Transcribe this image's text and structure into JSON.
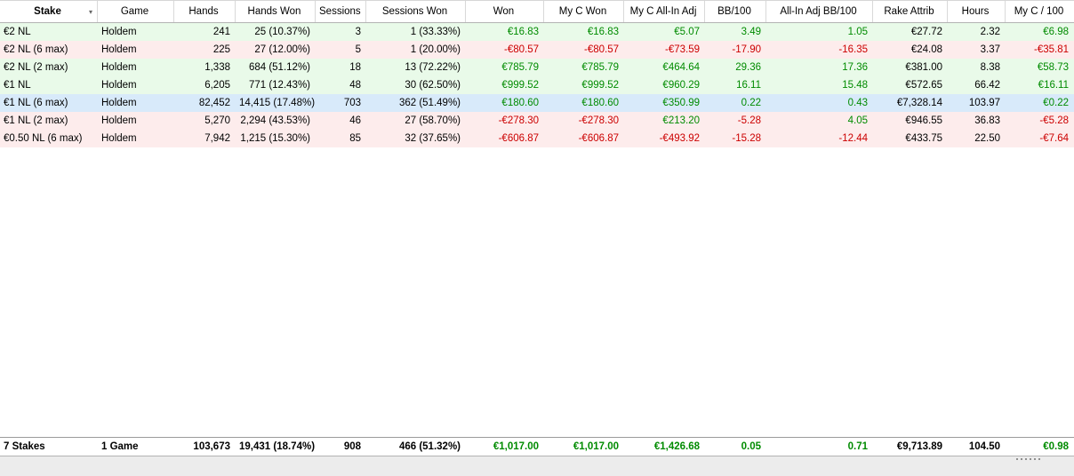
{
  "colors": {
    "positive_text": "#008b00",
    "negative_text": "#cc0000",
    "row_win_bg": "#e9fae9",
    "row_loss_bg": "#fdecec",
    "row_selected_bg": "#d8eafa"
  },
  "table": {
    "columns": [
      {
        "id": "stake",
        "label": "Stake",
        "sort_arrow": true
      },
      {
        "id": "game",
        "label": "Game"
      },
      {
        "id": "hands",
        "label": "Hands"
      },
      {
        "id": "hands-won",
        "label": "Hands Won"
      },
      {
        "id": "sessions",
        "label": "Sessions"
      },
      {
        "id": "sessions-won",
        "label": "Sessions Won"
      },
      {
        "id": "won",
        "label": "Won"
      },
      {
        "id": "my-c-won",
        "label": "My C Won"
      },
      {
        "id": "my-c-all-in-adj",
        "label": "My C All-In Adj"
      },
      {
        "id": "bb-100",
        "label": "BB/100"
      },
      {
        "id": "all-in-adj-bb-100",
        "label": "All-In Adj BB/100"
      },
      {
        "id": "rake-attrib",
        "label": "Rake Attrib"
      },
      {
        "id": "hours",
        "label": "Hours"
      },
      {
        "id": "my-c-100",
        "label": "My C / 100"
      }
    ],
    "rows": [
      {
        "bg": "green",
        "selected": false,
        "cells": [
          {
            "t": "€2 NL"
          },
          {
            "t": "Holdem"
          },
          {
            "t": "241"
          },
          {
            "t": "25 (10.37%)"
          },
          {
            "t": "3"
          },
          {
            "t": "1 (33.33%)"
          },
          {
            "t": "€16.83",
            "c": "pos"
          },
          {
            "t": "€16.83",
            "c": "pos"
          },
          {
            "t": "€5.07",
            "c": "pos"
          },
          {
            "t": "3.49",
            "c": "pos"
          },
          {
            "t": "1.05",
            "c": "pos"
          },
          {
            "t": "€27.72"
          },
          {
            "t": "2.32"
          },
          {
            "t": "€6.98",
            "c": "pos"
          }
        ]
      },
      {
        "bg": "pink",
        "selected": false,
        "cells": [
          {
            "t": "€2 NL (6 max)"
          },
          {
            "t": "Holdem"
          },
          {
            "t": "225"
          },
          {
            "t": "27 (12.00%)"
          },
          {
            "t": "5"
          },
          {
            "t": "1 (20.00%)"
          },
          {
            "t": "-€80.57",
            "c": "neg"
          },
          {
            "t": "-€80.57",
            "c": "neg"
          },
          {
            "t": "-€73.59",
            "c": "neg"
          },
          {
            "t": "-17.90",
            "c": "neg"
          },
          {
            "t": "-16.35",
            "c": "neg"
          },
          {
            "t": "€24.08"
          },
          {
            "t": "3.37"
          },
          {
            "t": "-€35.81",
            "c": "neg"
          }
        ]
      },
      {
        "bg": "green",
        "selected": false,
        "cells": [
          {
            "t": "€2 NL (2 max)"
          },
          {
            "t": "Holdem"
          },
          {
            "t": "1,338"
          },
          {
            "t": "684 (51.12%)"
          },
          {
            "t": "18"
          },
          {
            "t": "13 (72.22%)"
          },
          {
            "t": "€785.79",
            "c": "pos"
          },
          {
            "t": "€785.79",
            "c": "pos"
          },
          {
            "t": "€464.64",
            "c": "pos"
          },
          {
            "t": "29.36",
            "c": "pos"
          },
          {
            "t": "17.36",
            "c": "pos"
          },
          {
            "t": "€381.00"
          },
          {
            "t": "8.38"
          },
          {
            "t": "€58.73",
            "c": "pos"
          }
        ]
      },
      {
        "bg": "green",
        "selected": false,
        "cells": [
          {
            "t": "€1 NL"
          },
          {
            "t": "Holdem"
          },
          {
            "t": "6,205"
          },
          {
            "t": "771 (12.43%)"
          },
          {
            "t": "48"
          },
          {
            "t": "30 (62.50%)"
          },
          {
            "t": "€999.52",
            "c": "pos"
          },
          {
            "t": "€999.52",
            "c": "pos"
          },
          {
            "t": "€960.29",
            "c": "pos"
          },
          {
            "t": "16.11",
            "c": "pos"
          },
          {
            "t": "15.48",
            "c": "pos"
          },
          {
            "t": "€572.65"
          },
          {
            "t": "66.42"
          },
          {
            "t": "€16.11",
            "c": "pos"
          }
        ]
      },
      {
        "bg": "blue",
        "selected": true,
        "cells": [
          {
            "t": "€1 NL (6 max)"
          },
          {
            "t": "Holdem"
          },
          {
            "t": "82,452"
          },
          {
            "t": "14,415 (17.48%)"
          },
          {
            "t": "703"
          },
          {
            "t": "362 (51.49%)"
          },
          {
            "t": "€180.60",
            "c": "pos"
          },
          {
            "t": "€180.60",
            "c": "pos"
          },
          {
            "t": "€350.99",
            "c": "pos"
          },
          {
            "t": "0.22",
            "c": "pos"
          },
          {
            "t": "0.43",
            "c": "pos"
          },
          {
            "t": "€7,328.14"
          },
          {
            "t": "103.97"
          },
          {
            "t": "€0.22",
            "c": "pos"
          }
        ]
      },
      {
        "bg": "pink",
        "selected": false,
        "cells": [
          {
            "t": "€1 NL (2 max)"
          },
          {
            "t": "Holdem"
          },
          {
            "t": "5,270"
          },
          {
            "t": "2,294 (43.53%)"
          },
          {
            "t": "46"
          },
          {
            "t": "27 (58.70%)"
          },
          {
            "t": "-€278.30",
            "c": "neg"
          },
          {
            "t": "-€278.30",
            "c": "neg"
          },
          {
            "t": "€213.20",
            "c": "pos"
          },
          {
            "t": "-5.28",
            "c": "neg"
          },
          {
            "t": "4.05",
            "c": "pos"
          },
          {
            "t": "€946.55"
          },
          {
            "t": "36.83"
          },
          {
            "t": "-€5.28",
            "c": "neg"
          }
        ]
      },
      {
        "bg": "pink",
        "selected": false,
        "cells": [
          {
            "t": "€0.50 NL (6 max)"
          },
          {
            "t": "Holdem"
          },
          {
            "t": "7,942"
          },
          {
            "t": "1,215 (15.30%)"
          },
          {
            "t": "85"
          },
          {
            "t": "32 (37.65%)"
          },
          {
            "t": "-€606.87",
            "c": "neg"
          },
          {
            "t": "-€606.87",
            "c": "neg"
          },
          {
            "t": "-€493.92",
            "c": "neg"
          },
          {
            "t": "-15.28",
            "c": "neg"
          },
          {
            "t": "-12.44",
            "c": "neg"
          },
          {
            "t": "€433.75"
          },
          {
            "t": "22.50"
          },
          {
            "t": "-€7.64",
            "c": "neg"
          }
        ]
      }
    ],
    "totals": {
      "cells": [
        {
          "t": "7 Stakes"
        },
        {
          "t": "1 Game"
        },
        {
          "t": "103,673"
        },
        {
          "t": "19,431 (18.74%)"
        },
        {
          "t": "908"
        },
        {
          "t": "466 (51.32%)"
        },
        {
          "t": "€1,017.00",
          "c": "pos"
        },
        {
          "t": "€1,017.00",
          "c": "pos"
        },
        {
          "t": "€1,426.68",
          "c": "pos"
        },
        {
          "t": "0.05",
          "c": "pos"
        },
        {
          "t": "0.71",
          "c": "pos"
        },
        {
          "t": "€9,713.89"
        },
        {
          "t": "104.50"
        },
        {
          "t": "€0.98",
          "c": "pos"
        }
      ]
    }
  },
  "icons": {
    "sort_arrow": "▾"
  }
}
